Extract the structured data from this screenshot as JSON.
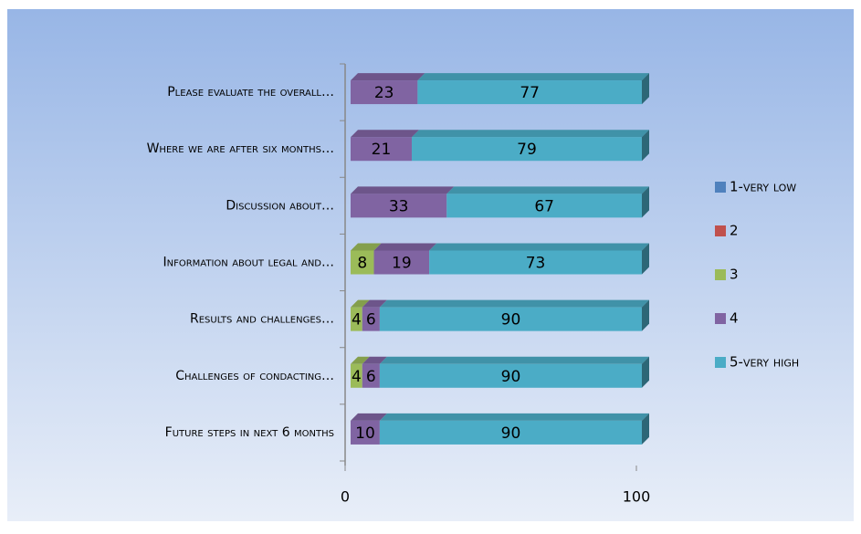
{
  "chart_data": {
    "type": "stacked-bar-horizontal",
    "categories": [
      "Please evaluate the overall…",
      "Where we are after six months…",
      "Discussion about…",
      "Information about legal and…",
      "Results and challenges…",
      "Challenges of condacting…",
      "Future steps in next 6 months"
    ],
    "series": [
      {
        "name": "1-very low",
        "color": "#4f81bd",
        "values": [
          0,
          0,
          0,
          0,
          0,
          0,
          0
        ]
      },
      {
        "name": "2",
        "color": "#c0504d",
        "values": [
          0,
          0,
          0,
          0,
          0,
          0,
          0
        ]
      },
      {
        "name": "3",
        "color": "#9bbb59",
        "values": [
          0,
          0,
          0,
          8,
          4,
          4,
          0
        ]
      },
      {
        "name": "4",
        "color": "#8064a2",
        "values": [
          23,
          21,
          33,
          19,
          6,
          6,
          10
        ]
      },
      {
        "name": "5-very high",
        "color": "#4bacc6",
        "values": [
          77,
          79,
          67,
          73,
          90,
          90,
          90
        ]
      }
    ],
    "xlim": [
      0,
      100
    ],
    "xticks": [
      0,
      100
    ],
    "legend": "right"
  }
}
